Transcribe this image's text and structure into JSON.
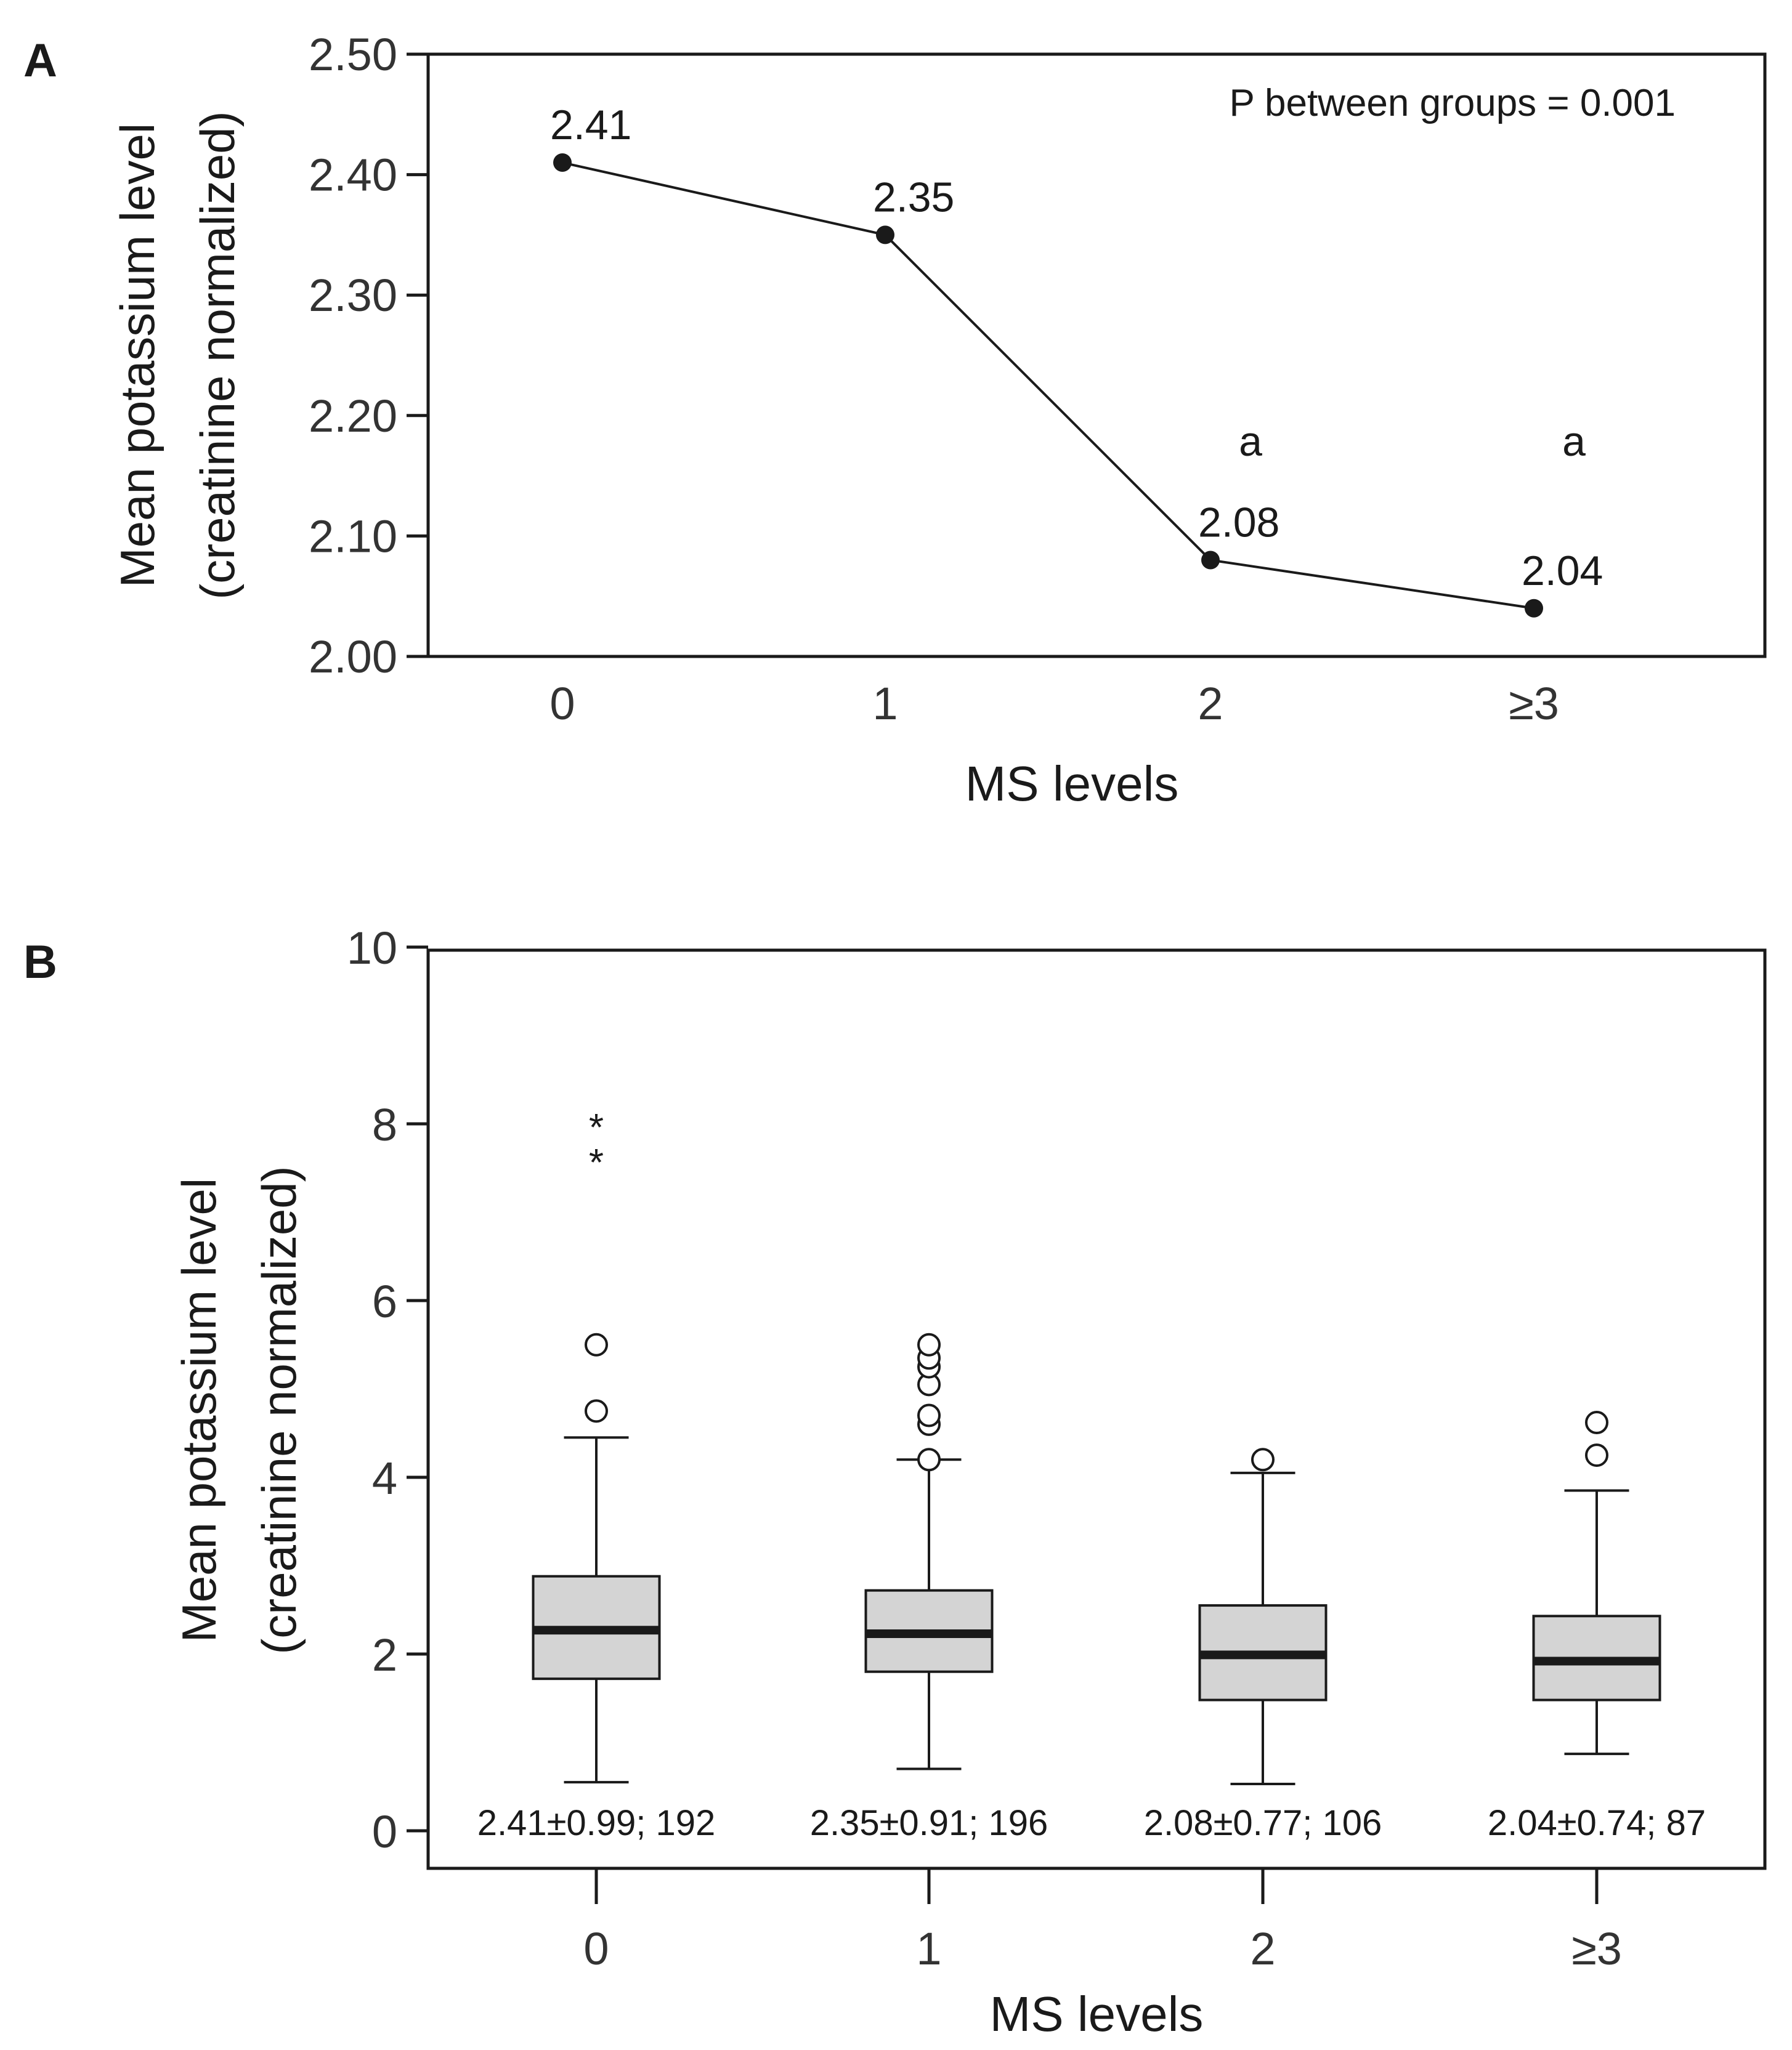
{
  "chart_data": [
    {
      "panel": "A",
      "type": "line",
      "categories": [
        "0",
        "1",
        "2",
        "≥3"
      ],
      "values": [
        2.41,
        2.35,
        2.08,
        2.04
      ],
      "value_labels": [
        "2.41",
        "2.35",
        "2.08",
        "2.04"
      ],
      "significance_marks": [
        "",
        "",
        "a",
        "a"
      ],
      "xlabel": "MS levels",
      "ylabel": [
        "Mean potassium level",
        "(creatinine normalized)"
      ],
      "ylim": [
        2.0,
        2.5
      ],
      "yticks": [
        "2.00",
        "2.10",
        "2.20",
        "2.30",
        "2.40",
        "2.50"
      ],
      "annotation": "P between groups = 0.001"
    },
    {
      "panel": "B",
      "type": "box",
      "categories": [
        "0",
        "1",
        "2",
        "≥3"
      ],
      "boxes": [
        {
          "whisker_low": 0.55,
          "q1": 1.72,
          "median": 2.27,
          "q3": 2.88,
          "whisker_high": 4.45,
          "outliers": [
            4.75,
            5.5
          ],
          "extremes": [
            7.65,
            8.05
          ]
        },
        {
          "whisker_low": 0.7,
          "q1": 1.8,
          "median": 2.23,
          "q3": 2.72,
          "whisker_high": 4.2,
          "outliers": [
            4.2,
            4.6,
            4.7,
            5.05,
            5.25,
            5.35,
            5.5
          ],
          "extremes": []
        },
        {
          "whisker_low": 0.53,
          "q1": 1.48,
          "median": 1.99,
          "q3": 2.55,
          "whisker_high": 4.05,
          "outliers": [
            4.2
          ],
          "extremes": []
        },
        {
          "whisker_low": 0.87,
          "q1": 1.48,
          "median": 1.92,
          "q3": 2.43,
          "whisker_high": 3.85,
          "outliers": [
            4.25,
            4.62
          ],
          "extremes": []
        }
      ],
      "summaries": [
        "2.41±0.99; 192",
        "2.35±0.91; 196",
        "2.08±0.77; 106",
        "2.04±0.74; 87"
      ],
      "xlabel": "MS levels",
      "ylabel": [
        "Mean potassium level",
        "(creatinine normalized)"
      ],
      "ylim": [
        0,
        10
      ],
      "yticks": [
        "0",
        "2",
        "4",
        "6",
        "8",
        "10"
      ]
    }
  ],
  "box_fill": "#d4d4d4",
  "line_color": "#1a1a1a"
}
